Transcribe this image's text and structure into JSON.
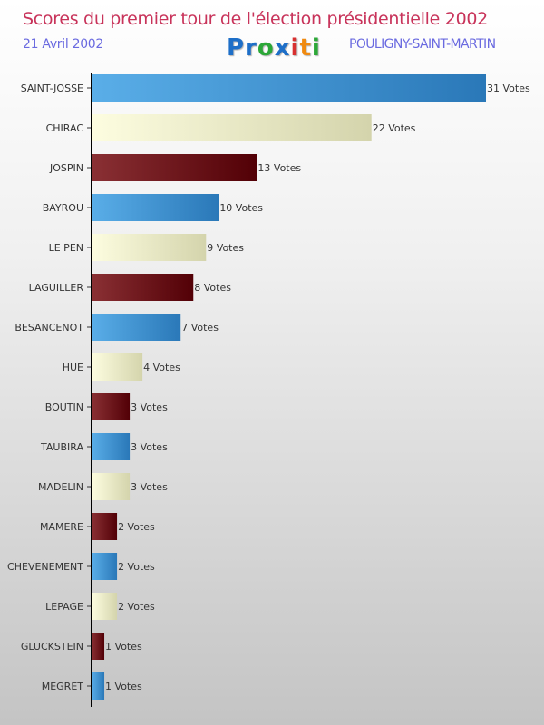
{
  "header": {
    "title": "Scores du premier tour de l'élection présidentielle 2002",
    "date": "21 Avril 2002",
    "logo": "Proxiti",
    "place": "POULIGNY-SAINT-MARTIN"
  },
  "chart_data": {
    "type": "bar",
    "orientation": "horizontal",
    "title": "Scores du premier tour de l'élection présidentielle 2002",
    "value_suffix": " Votes",
    "categories": [
      "SAINT-JOSSE",
      "CHIRAC",
      "JOSPIN",
      "BAYROU",
      "LE PEN",
      "LAGUILLER",
      "BESANCENOT",
      "HUE",
      "BOUTIN",
      "TAUBIRA",
      "MADELIN",
      "MAMERE",
      "CHEVENEMENT",
      "LEPAGE",
      "GLUCKSTEIN",
      "MEGRET"
    ],
    "values": [
      31,
      22,
      13,
      10,
      9,
      8,
      7,
      4,
      3,
      3,
      3,
      2,
      2,
      2,
      1,
      1
    ],
    "colors": [
      "blue",
      "cream",
      "maroon",
      "blue",
      "cream",
      "maroon",
      "blue",
      "cream",
      "maroon",
      "blue",
      "cream",
      "maroon",
      "blue",
      "cream",
      "maroon",
      "blue"
    ],
    "palette": {
      "blue": [
        "#5aaee8",
        "#2a78b8"
      ],
      "cream": [
        "#fdfde0",
        "#d4d4ac"
      ],
      "maroon": [
        "#8a3034",
        "#520006"
      ]
    },
    "xlim": [
      0,
      31
    ]
  }
}
